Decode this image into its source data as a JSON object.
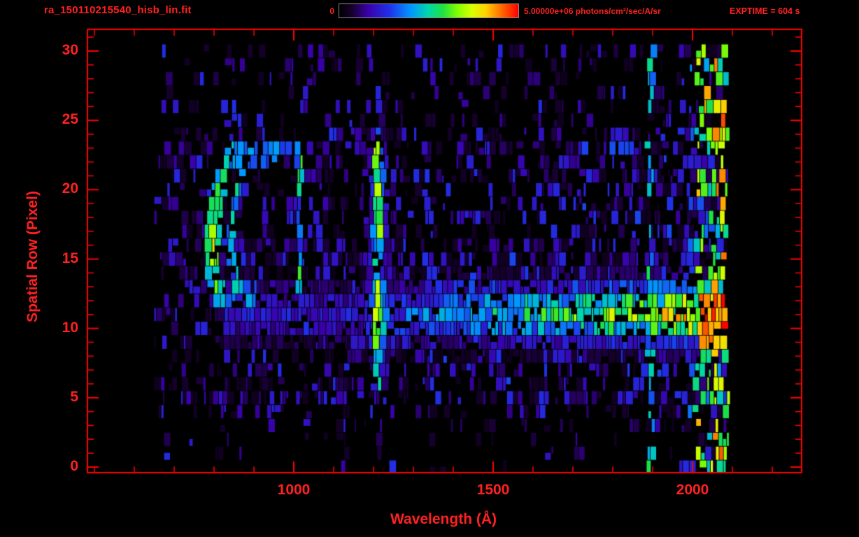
{
  "header": {
    "title": "ra_150110215540_hisb_lin.fit",
    "colorbar_min_label": "0",
    "colorbar_max_label": "5.00000e+06 photons/cm²/sec/A/sr",
    "exptime_label": "EXPTIME = 604 s"
  },
  "colors": {
    "accent": "#ff2121",
    "frame": "#ff0000",
    "background": "#000000",
    "colorbar_border": "#8a8a8a"
  },
  "chart_data": {
    "type": "heatmap",
    "title": "ra_150110215540_hisb_lin.fit",
    "xlabel": "Wavelength (Å)",
    "ylabel": "Spatial Row (Pixel)",
    "xlim": [
      482,
      2273
    ],
    "ylim": [
      -0.4,
      31.6
    ],
    "xticks": [
      1000,
      1500,
      2000
    ],
    "xtick_minor_interval": 100,
    "yticks": [
      0,
      5,
      10,
      15,
      20,
      25,
      30
    ],
    "ytick_minor_interval": 1,
    "colorbar": {
      "min": 0,
      "max": 5000000,
      "units": "photons/cm²/sec/A/sr"
    },
    "exposure_time_s": 604,
    "random_seed": 1337,
    "data_extent": {
      "wavelength_min": 650,
      "wavelength_max": 2095,
      "row_min": 0,
      "row_max": 30
    },
    "colormap_stops": [
      {
        "t": 0.0,
        "c": "#000000"
      },
      {
        "t": 0.07,
        "c": "#16002c"
      },
      {
        "t": 0.16,
        "c": "#3a00a8"
      },
      {
        "t": 0.28,
        "c": "#2030e8"
      },
      {
        "t": 0.4,
        "c": "#0098ff"
      },
      {
        "t": 0.5,
        "c": "#00d8a8"
      },
      {
        "t": 0.58,
        "c": "#20e040"
      },
      {
        "t": 0.66,
        "c": "#80ff00"
      },
      {
        "t": 0.74,
        "c": "#d8ff00"
      },
      {
        "t": 0.82,
        "c": "#ffd000"
      },
      {
        "t": 0.9,
        "c": "#ff7000"
      },
      {
        "t": 1.0,
        "c": "#ff0000"
      }
    ],
    "features": {
      "crescent_arc": {
        "apex_wavelength": 797,
        "row_center": 16.2,
        "rows": [
          12,
          23.5
        ],
        "curvature": 1.05,
        "peak_intensity": 0.88
      },
      "secondary_arc": {
        "apex_wavelength": 843,
        "row_center": 16,
        "rows": [
          13,
          21
        ],
        "curvature": 1.2,
        "intensity": 0.42
      },
      "emission_line_1016": {
        "wavelength": 1016,
        "rows": [
          12,
          23
        ],
        "intensity": 0.4
      },
      "lyman_alpha_line": {
        "wavelength": 1212,
        "rows": [
          6,
          24
        ],
        "core_intensity": 0.82
      },
      "continuum_band": {
        "rows": [
          8.5,
          13.5
        ],
        "row_center": 11.1,
        "wavelength_range": [
          830,
          2090
        ],
        "intensity_at_1250": 0.3,
        "intensity_at_2090": 0.95
      },
      "right_edge_noise": {
        "wavelength_range": [
          2015,
          2092
        ],
        "intensity_range": [
          0.25,
          1.0
        ]
      },
      "background_noise_intensity": [
        0.05,
        0.28
      ]
    }
  }
}
